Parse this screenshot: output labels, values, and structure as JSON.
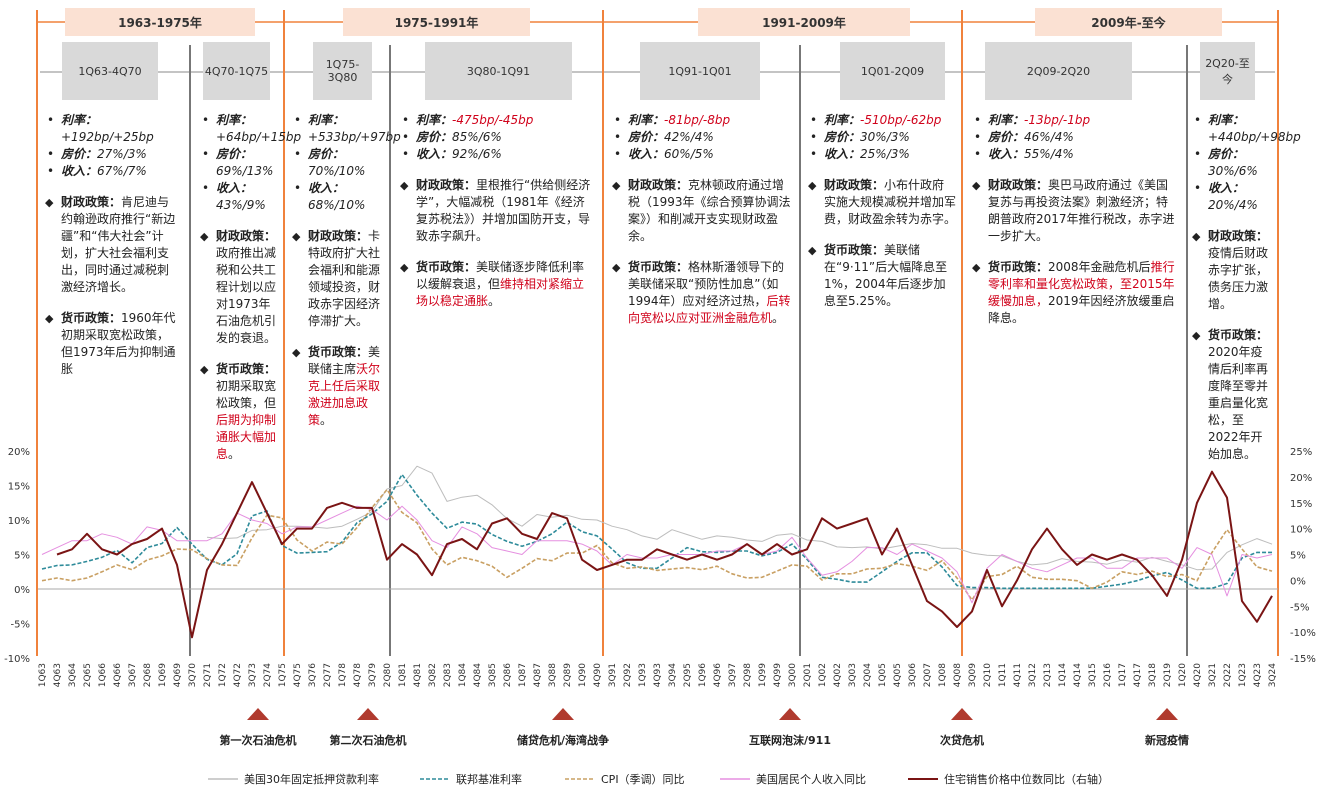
{
  "eras": [
    "1963-1975年",
    "1975-1991年",
    "1991-2009年",
    "2009年-至今"
  ],
  "field_labels": {
    "rate": "利率：",
    "house": "房价：",
    "income": "收入：",
    "fiscal": "财政政策：",
    "monetary": "货币政策："
  },
  "periods": [
    {
      "label": "1Q63-4Q70",
      "rate": "+192bp/+25bp",
      "rate_highlight": false,
      "house": "27%/3%",
      "income": "67%/7%",
      "fiscal": [
        "肯尼迪与约翰逊政府推行“新边疆”和“伟大社会”计划，扩大社会福利支出，同时通过减税刺激经济增长。"
      ],
      "monetary": [
        "1960年代初期采取宽松政策，但1973年后为抑制通胀"
      ]
    },
    {
      "label": "4Q70-1Q75",
      "rate": "+64bp/+15bp",
      "rate_highlight": false,
      "house": "69%/13%",
      "income": "43%/9%",
      "fiscal": [
        "政府推出减税和公共工程计划以应对1973年石油危机引发的衰退。"
      ],
      "monetary": [
        "初期采取宽松政策，但",
        {
          "text": "后期为抑制通胀大幅加息",
          "highlight": true
        },
        "。"
      ]
    },
    {
      "label": "1Q75-3Q80",
      "rate": "+533bp/+97bp",
      "rate_highlight": false,
      "house": "70%/10%",
      "income": "68%/10%",
      "fiscal": [
        "卡特政府扩大社会福利和能源领域投资，财政赤字因经济停滞扩大。"
      ],
      "monetary": [
        "美联储主席",
        {
          "text": "沃尔克上任后采取激进加息政策",
          "highlight": true
        },
        "。"
      ]
    },
    {
      "label": "3Q80-1Q91",
      "rate": "-475bp/-45bp",
      "rate_highlight": true,
      "house": "85%/6%",
      "income": "92%/6%",
      "fiscal": [
        "里根推行“供给侧经济学”，大幅减税（1981年《经济复苏税法》）并增加国防开支，导致赤字飙升。"
      ],
      "monetary": [
        "美联储逐步降低利率以缓解衰退，但",
        {
          "text": "维持相对紧缩立场以稳定通胀",
          "highlight": true
        },
        "。"
      ]
    },
    {
      "label": "1Q91-1Q01",
      "rate": "-81bp/-8bp",
      "rate_highlight": true,
      "house": "42%/4%",
      "income": "60%/5%",
      "fiscal": [
        "克林顿政府通过增税（1993年《综合预算协调法案》）和削减开支实现财政盈余。"
      ],
      "monetary": [
        "格林斯潘领导下的美联储采取“预防性加息”（如1994年）应对经济过热，",
        {
          "text": "后转向宽松以应对亚洲金融危机",
          "highlight": true
        },
        "。"
      ]
    },
    {
      "label": "1Q01-2Q09",
      "rate": "-510bp/-62bp",
      "rate_highlight": true,
      "house": "30%/3%",
      "income": "25%/3%",
      "fiscal": [
        "小布什政府实施大规模减税并增加军费，财政盈余转为赤字。"
      ],
      "monetary": [
        "美联储在“9·11”后大幅降息至1%，2004年后逐步加息至5.25%。"
      ]
    },
    {
      "label": "2Q09-2Q20",
      "rate": "-13bp/-1bp",
      "rate_highlight": true,
      "house": "46%/4%",
      "income": "55%/4%",
      "fiscal": [
        "奥巴马政府通过《美国复苏与再投资法案》刺激经济；特朗普政府2017年推行税改，赤字进一步扩大。"
      ],
      "monetary": [
        "2008年金融危机后",
        {
          "text": "推行零利率和量化宽松政策，至2015年缓慢加息，",
          "highlight": true
        },
        "2019年因经济放缓重启降息。"
      ]
    },
    {
      "label": "2Q20-至今",
      "rate": "+440bp/+98bp",
      "rate_highlight": false,
      "house": "30%/6%",
      "income": "20%/4%",
      "fiscal": [
        "疫情后财政赤字扩张，债务压力激增。"
      ],
      "monetary": [
        "2020年疫情后利率再度降至零并重启量化宽松，至2022年开始加息。"
      ]
    }
  ],
  "events": [
    "第一次石油危机",
    "第二次石油危机",
    "储贷危机/海湾战争",
    "互联网泡沫/911",
    "次贷危机",
    "新冠疫情"
  ],
  "chart_data": {
    "type": "line",
    "categories": [
      "1Q63",
      "4Q63",
      "3Q64",
      "2Q65",
      "1Q66",
      "4Q66",
      "3Q67",
      "2Q68",
      "1Q69",
      "4Q69",
      "3Q70",
      "2Q71",
      "1Q72",
      "4Q72",
      "3Q73",
      "2Q74",
      "1Q75",
      "4Q75",
      "3Q76",
      "2Q77",
      "1Q78",
      "4Q78",
      "3Q79",
      "2Q80",
      "1Q81",
      "4Q81",
      "3Q82",
      "2Q83",
      "1Q84",
      "4Q84",
      "3Q85",
      "2Q86",
      "1Q87",
      "4Q87",
      "3Q88",
      "2Q89",
      "1Q90",
      "4Q90",
      "3Q91",
      "2Q92",
      "1Q93",
      "4Q93",
      "3Q94",
      "2Q95",
      "1Q96",
      "4Q96",
      "3Q97",
      "2Q98",
      "1Q99",
      "4Q99",
      "3Q00",
      "2Q01",
      "1Q02",
      "4Q02",
      "3Q03",
      "2Q04",
      "1Q05",
      "4Q05",
      "3Q06",
      "2Q07",
      "1Q08",
      "4Q08",
      "3Q09",
      "2Q10",
      "1Q11",
      "4Q11",
      "3Q12",
      "2Q13",
      "1Q14",
      "4Q14",
      "3Q15",
      "2Q16",
      "1Q17",
      "4Q17",
      "3Q18",
      "2Q19",
      "1Q20",
      "4Q20",
      "3Q21",
      "2Q22",
      "1Q23",
      "4Q23",
      "3Q24"
    ],
    "series": [
      {
        "name": "美国30年固定抵押贷款利率",
        "color": "#bdbdbd",
        "dash": false,
        "width": 1,
        "values": [
          null,
          null,
          null,
          null,
          null,
          null,
          null,
          null,
          null,
          null,
          null,
          7.5,
          7.3,
          7.4,
          8.5,
          8.6,
          9.1,
          9.1,
          9.0,
          8.8,
          9.1,
          10.1,
          11.2,
          14.5,
          15.0,
          17.8,
          16.8,
          12.7,
          13.3,
          13.6,
          12.2,
          10.2,
          9.1,
          10.8,
          10.4,
          10.7,
          10.1,
          10.0,
          9.1,
          8.6,
          7.7,
          7.2,
          8.6,
          7.9,
          7.2,
          7.7,
          7.5,
          7.1,
          6.9,
          7.8,
          8.0,
          7.1,
          6.9,
          6.1,
          6.0,
          6.1,
          5.8,
          6.2,
          6.6,
          6.4,
          5.9,
          5.9,
          5.2,
          4.9,
          4.8,
          4.0,
          3.5,
          3.7,
          4.4,
          4.0,
          3.9,
          3.6,
          4.2,
          3.9,
          4.6,
          4.0,
          3.5,
          2.8,
          2.9,
          5.3,
          6.4,
          7.3,
          6.5
        ]
      },
      {
        "name": "联邦基准利率",
        "color": "#2e8b9a",
        "dash": true,
        "width": 1.6,
        "values": [
          2.9,
          3.4,
          3.5,
          4.0,
          4.6,
          5.6,
          3.8,
          6.0,
          6.6,
          8.9,
          6.5,
          4.3,
          3.5,
          5.1,
          10.6,
          11.3,
          6.3,
          5.2,
          5.3,
          5.4,
          6.8,
          9.6,
          10.9,
          12.7,
          16.6,
          13.6,
          11.0,
          8.8,
          9.7,
          9.4,
          7.9,
          6.9,
          6.2,
          6.9,
          8.0,
          9.7,
          8.3,
          7.7,
          5.8,
          3.8,
          3.0,
          3.0,
          4.5,
          6.0,
          5.4,
          5.3,
          5.5,
          5.5,
          4.8,
          5.3,
          6.5,
          4.3,
          1.7,
          1.4,
          1.0,
          1.0,
          2.5,
          4.0,
          5.25,
          5.25,
          3.2,
          0.5,
          0.2,
          0.2,
          0.1,
          0.1,
          0.1,
          0.1,
          0.1,
          0.1,
          0.1,
          0.4,
          0.7,
          1.2,
          1.9,
          2.4,
          1.3,
          0.1,
          0.1,
          0.8,
          4.5,
          5.3,
          5.3
        ]
      },
      {
        "name": "CPI（季调）同比",
        "color": "#c9a063",
        "dash": true,
        "width": 1.6,
        "values": [
          1.2,
          1.6,
          1.2,
          1.6,
          2.5,
          3.5,
          2.8,
          4.2,
          4.8,
          5.8,
          5.7,
          4.4,
          3.5,
          3.4,
          7.4,
          10.7,
          10.3,
          7.1,
          5.5,
          6.8,
          6.5,
          8.9,
          11.8,
          14.4,
          11.1,
          9.6,
          5.8,
          3.5,
          4.6,
          4.1,
          3.3,
          1.7,
          3.0,
          4.4,
          4.1,
          5.2,
          5.2,
          6.3,
          3.8,
          3.0,
          3.2,
          2.7,
          2.9,
          3.1,
          2.8,
          3.3,
          2.2,
          1.6,
          1.7,
          2.6,
          3.5,
          3.3,
          1.3,
          2.2,
          2.2,
          2.9,
          3.0,
          3.7,
          3.3,
          2.7,
          4.1,
          1.6,
          -1.6,
          1.8,
          2.1,
          3.3,
          1.7,
          1.4,
          1.4,
          1.2,
          0.1,
          1.0,
          2.5,
          2.1,
          2.6,
          1.8,
          2.1,
          1.2,
          5.3,
          8.6,
          5.8,
          3.2,
          2.6
        ]
      },
      {
        "name": "美国居民个人收入同比",
        "color": "#e58fe0",
        "dash": false,
        "width": 1,
        "values": [
          5,
          6,
          7,
          7,
          8,
          7.5,
          6.5,
          9,
          8.5,
          7,
          7,
          7,
          8,
          11,
          10,
          9.5,
          8,
          9,
          9,
          10,
          11,
          12,
          11.5,
          10,
          12,
          10,
          7,
          6,
          9,
          8,
          6,
          5.5,
          5,
          7,
          7,
          7,
          6.5,
          5.5,
          3.5,
          5,
          4.5,
          4.5,
          5,
          5,
          5,
          5.5,
          5.5,
          6.5,
          5,
          5.5,
          7.5,
          4.5,
          2,
          2.5,
          4,
          6,
          6,
          5,
          6.5,
          5.5,
          4.5,
          2.5,
          -2,
          3,
          5,
          4,
          3,
          2.5,
          3.5,
          4.5,
          4.5,
          3,
          3,
          4.5,
          4.5,
          4.5,
          3,
          6,
          5,
          -1,
          5,
          4.5,
          5
        ]
      },
      {
        "name": "住宅销售价格中位数同比（右轴）",
        "color": "#7a1414",
        "dash": false,
        "width": 2,
        "axis": "y2",
        "values": [
          null,
          5,
          6,
          9,
          6,
          5,
          7,
          8,
          10,
          3,
          -11,
          2,
          7,
          13,
          19,
          13,
          7,
          10,
          10,
          14,
          15,
          14,
          14,
          4,
          7,
          5,
          1,
          7,
          8,
          6,
          11,
          12,
          9,
          8,
          13,
          12,
          4,
          2,
          3,
          4,
          4,
          6,
          5,
          4,
          5,
          4,
          5,
          7,
          5,
          7,
          5,
          6,
          12,
          10,
          11,
          12,
          5,
          10,
          3,
          -4,
          -6,
          -9,
          -6,
          2,
          -5,
          0,
          6,
          10,
          6,
          3,
          5,
          4,
          5,
          4,
          1,
          -3,
          4,
          15,
          21,
          16,
          -4,
          -8,
          -3
        ]
      }
    ],
    "ylim": [
      -10,
      20
    ],
    "yticks": [
      {
        "value": 20,
        "label": "20%"
      },
      {
        "value": 15,
        "label": "15%"
      },
      {
        "value": 10,
        "label": "10%"
      },
      {
        "value": 5,
        "label": "5%"
      },
      {
        "value": 0,
        "label": "0%"
      },
      {
        "value": -5,
        "label": "-5%"
      },
      {
        "value": -10,
        "label": "-10%"
      }
    ],
    "y2lim": [
      -15,
      25
    ],
    "y2ticks": [
      {
        "value": 25,
        "label": "25%"
      },
      {
        "value": 20,
        "label": "20%"
      },
      {
        "value": 15,
        "label": "15%"
      },
      {
        "value": 10,
        "label": "10%"
      },
      {
        "value": 5,
        "label": "5%"
      },
      {
        "value": 0,
        "label": "0%"
      },
      {
        "value": -5,
        "label": "-5%"
      },
      {
        "value": -10,
        "label": "-10%"
      },
      {
        "value": -15,
        "label": "-15%"
      }
    ]
  }
}
